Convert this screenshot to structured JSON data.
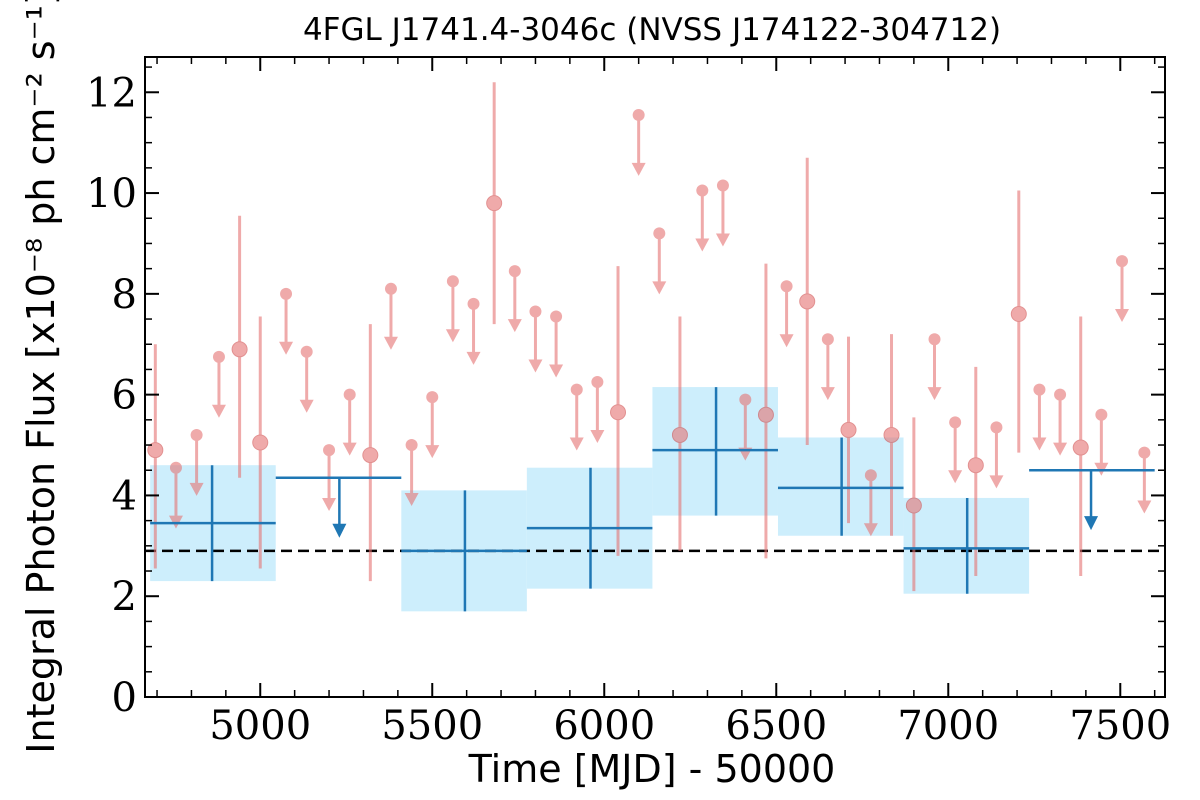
{
  "chart_data": {
    "type": "scatter",
    "title": "4FGL J1741.4-3046c (NVSS J174122-304712)",
    "xlabel": "Time [MJD] - 50000",
    "ylabel": "Integral Photon Flux [x10⁻⁸ ph cm⁻² s⁻¹]",
    "xlim": [
      4665,
      7630
    ],
    "ylim": [
      0,
      12.7
    ],
    "x_ticks": [
      5000,
      5500,
      6000,
      6500,
      7000,
      7500
    ],
    "x_tick_labels": [
      "5000",
      "5500",
      "6000",
      "6500",
      "7000",
      "7500"
    ],
    "y_ticks": [
      0,
      2,
      4,
      6,
      8,
      10,
      12
    ],
    "y_tick_labels": [
      "0",
      "2",
      "4",
      "6",
      "8",
      "10",
      "12"
    ],
    "grid": false,
    "colors": {
      "monthly": "#e57373",
      "yearly": "#1f77b4",
      "yearly_band": "#cdeefc",
      "mean_line": "#000000"
    },
    "mean_flux": 2.9,
    "monthly_bins": [
      {
        "x": 4695,
        "y": 4.9,
        "ylo": 2.55,
        "yhi": 7.0,
        "ul": false
      },
      {
        "x": 4755,
        "y": 4.55,
        "ul": true
      },
      {
        "x": 4815,
        "y": 5.2,
        "ul": true
      },
      {
        "x": 4880,
        "y": 6.75,
        "ul": true
      },
      {
        "x": 4940,
        "y": 6.9,
        "ylo": 4.35,
        "yhi": 9.55,
        "ul": false
      },
      {
        "x": 5000,
        "y": 5.05,
        "ylo": 2.55,
        "yhi": 7.55,
        "ul": false
      },
      {
        "x": 5075,
        "y": 8.0,
        "ul": true
      },
      {
        "x": 5135,
        "y": 6.85,
        "ul": true
      },
      {
        "x": 5200,
        "y": 4.9,
        "ul": true
      },
      {
        "x": 5260,
        "y": 6.0,
        "ul": true
      },
      {
        "x": 5320,
        "y": 4.8,
        "ylo": 2.3,
        "yhi": 7.4,
        "ul": false
      },
      {
        "x": 5380,
        "y": 8.1,
        "ul": true
      },
      {
        "x": 5440,
        "y": 5.0,
        "ul": true
      },
      {
        "x": 5500,
        "y": 5.95,
        "ul": true
      },
      {
        "x": 5560,
        "y": 8.25,
        "ul": true
      },
      {
        "x": 5620,
        "y": 7.8,
        "ul": true
      },
      {
        "x": 5680,
        "y": 9.8,
        "ylo": 7.4,
        "yhi": 12.2,
        "ul": false
      },
      {
        "x": 5740,
        "y": 8.45,
        "ul": true
      },
      {
        "x": 5800,
        "y": 7.65,
        "ul": true
      },
      {
        "x": 5860,
        "y": 7.55,
        "ul": true
      },
      {
        "x": 5920,
        "y": 6.1,
        "ul": true
      },
      {
        "x": 5980,
        "y": 6.25,
        "ul": true
      },
      {
        "x": 6040,
        "y": 5.65,
        "ylo": 2.8,
        "yhi": 8.55,
        "ul": false
      },
      {
        "x": 6100,
        "y": 11.55,
        "ul": true
      },
      {
        "x": 6160,
        "y": 9.2,
        "ul": true
      },
      {
        "x": 6220,
        "y": 5.2,
        "ylo": 2.9,
        "yhi": 7.55,
        "ul": false
      },
      {
        "x": 6285,
        "y": 10.05,
        "ul": true
      },
      {
        "x": 6345,
        "y": 10.15,
        "ul": true
      },
      {
        "x": 6410,
        "y": 5.9,
        "ul": true
      },
      {
        "x": 6470,
        "y": 5.6,
        "ylo": 2.75,
        "yhi": 8.6,
        "ul": false
      },
      {
        "x": 6530,
        "y": 8.15,
        "ul": true
      },
      {
        "x": 6590,
        "y": 7.85,
        "ylo": 5.0,
        "yhi": 10.7,
        "ul": false
      },
      {
        "x": 6650,
        "y": 7.1,
        "ul": true
      },
      {
        "x": 6710,
        "y": 5.3,
        "ylo": 3.45,
        "yhi": 7.15,
        "ul": false
      },
      {
        "x": 6775,
        "y": 4.4,
        "ul": true
      },
      {
        "x": 6835,
        "y": 5.2,
        "ylo": 3.2,
        "yhi": 7.2,
        "ul": false
      },
      {
        "x": 6900,
        "y": 3.8,
        "ylo": 2.1,
        "yhi": 5.55,
        "ul": false
      },
      {
        "x": 6960,
        "y": 7.1,
        "ul": true
      },
      {
        "x": 7020,
        "y": 5.45,
        "ul": true
      },
      {
        "x": 7080,
        "y": 4.6,
        "ylo": 2.4,
        "yhi": 6.55,
        "ul": false
      },
      {
        "x": 7140,
        "y": 5.35,
        "ul": true
      },
      {
        "x": 7205,
        "y": 7.6,
        "ylo": 4.85,
        "yhi": 10.05,
        "ul": false
      },
      {
        "x": 7265,
        "y": 6.1,
        "ul": true
      },
      {
        "x": 7325,
        "y": 6.0,
        "ul": true
      },
      {
        "x": 7385,
        "y": 4.95,
        "ylo": 2.4,
        "yhi": 7.55,
        "ul": false
      },
      {
        "x": 7445,
        "y": 5.6,
        "ul": true
      },
      {
        "x": 7505,
        "y": 8.65,
        "ul": true
      },
      {
        "x": 7570,
        "y": 4.85,
        "ul": true
      }
    ],
    "yearly_bins": [
      {
        "x0": 4680,
        "x1": 5045,
        "x": 4860,
        "y": 3.45,
        "ylo": 2.3,
        "yhi": 4.6,
        "ul": false
      },
      {
        "x0": 5045,
        "x1": 5410,
        "x": 5230,
        "y": 4.35,
        "ul": true
      },
      {
        "x0": 5410,
        "x1": 5775,
        "x": 5595,
        "y": 2.9,
        "ylo": 1.7,
        "yhi": 4.1,
        "ul": false
      },
      {
        "x0": 5775,
        "x1": 6140,
        "x": 5960,
        "y": 3.35,
        "ylo": 2.15,
        "yhi": 4.55,
        "ul": false
      },
      {
        "x0": 6140,
        "x1": 6505,
        "x": 6325,
        "y": 4.9,
        "ylo": 3.6,
        "yhi": 6.15,
        "ul": false
      },
      {
        "x0": 6505,
        "x1": 6870,
        "x": 6690,
        "y": 4.15,
        "ylo": 3.2,
        "yhi": 5.15,
        "ul": false
      },
      {
        "x0": 6870,
        "x1": 7235,
        "x": 7055,
        "y": 2.95,
        "ylo": 2.05,
        "yhi": 3.95,
        "ul": false
      },
      {
        "x0": 7235,
        "x1": 7600,
        "x": 7415,
        "y": 4.5,
        "ul": true
      }
    ]
  }
}
